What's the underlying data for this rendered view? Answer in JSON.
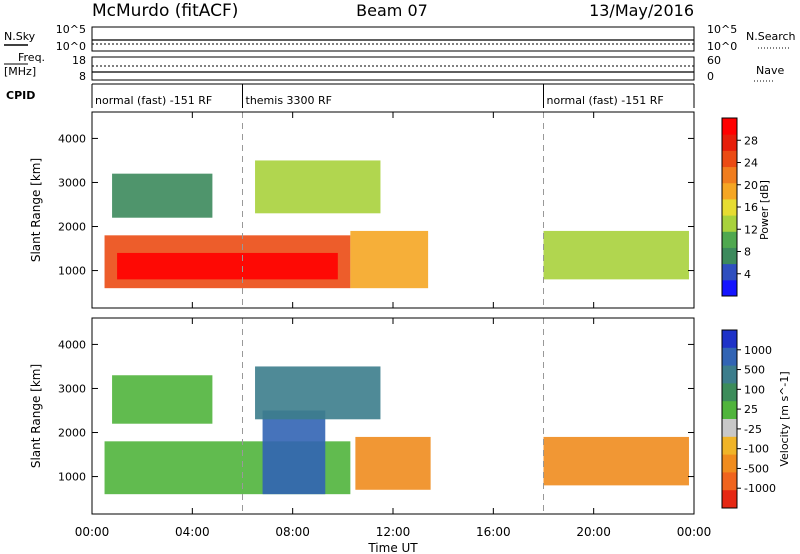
{
  "header": {
    "station": "McMurdo (fitACF)",
    "beam": "Beam 07",
    "date": "13/May/2016"
  },
  "aux": {
    "nsky_label": "N.Sky",
    "nsearch_label": "N.Search",
    "nsky_ticks": [
      "10^5",
      "10^0"
    ],
    "nsearch_ticks": [
      "10^5",
      "10^0"
    ],
    "freq_label_1": "Freq.",
    "freq_label_2": "[MHz]",
    "freq_ticks": [
      "18",
      "8"
    ],
    "nave_label": "Nave",
    "nave_ticks": [
      "60",
      "0"
    ],
    "cpid_label": "CPID",
    "cpid_segments": [
      {
        "label": "normal (fast) -151 RF",
        "start": 0,
        "end": 6
      },
      {
        "label": "themis 3300 RF",
        "start": 6,
        "end": 18
      },
      {
        "label": "normal (fast) -151 RF",
        "start": 18,
        "end": 24
      }
    ]
  },
  "colorbars": {
    "power": {
      "label": "Power [dB]",
      "ticks": [
        "4",
        "8",
        "12",
        "16",
        "20",
        "24",
        "28"
      ],
      "colors": [
        "#1414ff",
        "#2f4fbf",
        "#3c8a5c",
        "#4fa84f",
        "#a8d23c",
        "#e6dc32",
        "#f5a623",
        "#f07d1e",
        "#eb4b14",
        "#e61e0a",
        "#ff0000"
      ]
    },
    "velocity": {
      "label": "Velocity [m s^-1]",
      "ticks": [
        "1000",
        "500",
        "100",
        "25",
        "-25",
        "-100",
        "-500",
        "-1000"
      ],
      "colors": [
        "#1e32c8",
        "#3264b4",
        "#3c7d8c",
        "#3c8c5a",
        "#50b43c",
        "#c8c8c8",
        "#f0b428",
        "#f08c1e",
        "#f0641e",
        "#e62814"
      ]
    }
  },
  "chart_data": [
    {
      "type": "heatmap",
      "parameter": "Power",
      "ylabel": "Slant Range [km]",
      "yticks": [
        "1000",
        "2000",
        "3000",
        "4000"
      ],
      "ylim": [
        150,
        4600
      ],
      "xlim": [
        0,
        24
      ],
      "xticks": [
        "00:00",
        "04:00",
        "08:00",
        "12:00",
        "16:00",
        "20:00",
        "00:00"
      ],
      "cpid_change_hours": [
        6,
        18
      ],
      "regions": [
        {
          "t0": 0.5,
          "t1": 10.3,
          "r0": 600,
          "r1": 1800,
          "value": 24
        },
        {
          "t0": 1.0,
          "t1": 9.8,
          "r0": 800,
          "r1": 1400,
          "value": 30
        },
        {
          "t0": 10.3,
          "t1": 13.4,
          "r0": 600,
          "r1": 1900,
          "value": 18
        },
        {
          "t0": 6.5,
          "t1": 11.5,
          "r0": 2300,
          "r1": 3500,
          "value": 12
        },
        {
          "t0": 0.8,
          "t1": 4.8,
          "r0": 2200,
          "r1": 3200,
          "value": 8
        },
        {
          "t0": 18.0,
          "t1": 23.8,
          "r0": 800,
          "r1": 1900,
          "value": 14
        }
      ]
    },
    {
      "type": "heatmap",
      "parameter": "Velocity",
      "ylabel": "Slant Range [km]",
      "yticks": [
        "1000",
        "2000",
        "3000",
        "4000"
      ],
      "ylim": [
        150,
        4600
      ],
      "xlim": [
        0,
        24
      ],
      "xticks": [
        "00:00",
        "04:00",
        "08:00",
        "12:00",
        "16:00",
        "20:00",
        "00:00"
      ],
      "xlabel": "Time UT",
      "cpid_change_hours": [
        6,
        18
      ],
      "regions": [
        {
          "t0": 0.5,
          "t1": 10.3,
          "r0": 600,
          "r1": 1800,
          "value": 80
        },
        {
          "t0": 6.8,
          "t1": 9.3,
          "r0": 600,
          "r1": 2500,
          "value": 700
        },
        {
          "t0": 10.5,
          "t1": 13.5,
          "r0": 700,
          "r1": 1900,
          "value": -150
        },
        {
          "t0": 6.5,
          "t1": 11.5,
          "r0": 2300,
          "r1": 3500,
          "value": 300
        },
        {
          "t0": 0.8,
          "t1": 4.8,
          "r0": 2200,
          "r1": 3300,
          "value": 30
        },
        {
          "t0": 18.0,
          "t1": 23.8,
          "r0": 800,
          "r1": 1900,
          "value": -200
        }
      ]
    }
  ]
}
